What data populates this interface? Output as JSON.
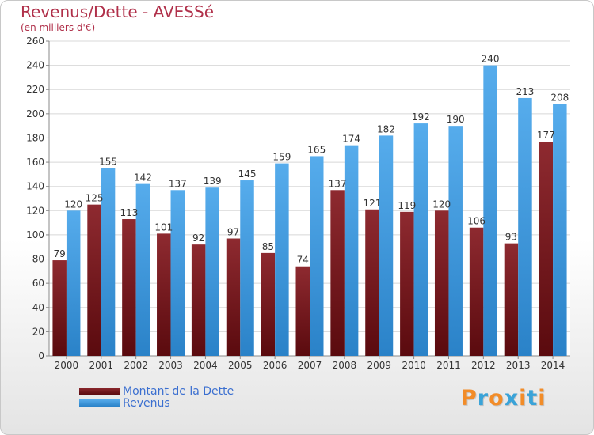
{
  "header": {
    "title": "Revenus/Dette - AVESSé",
    "subtitle": "(en milliers d'€)"
  },
  "logo": {
    "text": "Proxiti",
    "letter_colors": [
      "#f28c28",
      "#3aa3d8",
      "#f28c28",
      "#3aa3d8",
      "#f28c28",
      "#3aa3d8",
      "#f28c28"
    ]
  },
  "colors": {
    "dette": "#7a1a1f",
    "revenus": "#3a9be0",
    "grid": "#d8d8d8",
    "axis_text": "#333333",
    "title": "#b0304a",
    "legend_text": "#3b6fd0"
  },
  "chart_data": {
    "type": "bar",
    "title": "Revenus/Dette - AVESSé",
    "subtitle": "(en milliers d'€)",
    "xlabel": "",
    "ylabel": "",
    "ylim": [
      0,
      260
    ],
    "ytick_step": 20,
    "grid": true,
    "legend_position": "bottom-left",
    "categories": [
      "2000",
      "2001",
      "2002",
      "2003",
      "2004",
      "2005",
      "2006",
      "2007",
      "2008",
      "2009",
      "2010",
      "2011",
      "2012",
      "2013",
      "2014"
    ],
    "series": [
      {
        "name": "Montant de la Dette",
        "color": "#7a1a1f",
        "values": [
          79,
          125,
          113,
          101,
          92,
          97,
          85,
          74,
          137,
          121,
          119,
          120,
          106,
          93,
          177
        ]
      },
      {
        "name": "Revenus",
        "color": "#3a9be0",
        "values": [
          120,
          155,
          142,
          137,
          139,
          145,
          159,
          165,
          174,
          182,
          192,
          190,
          240,
          213,
          208
        ]
      }
    ]
  }
}
